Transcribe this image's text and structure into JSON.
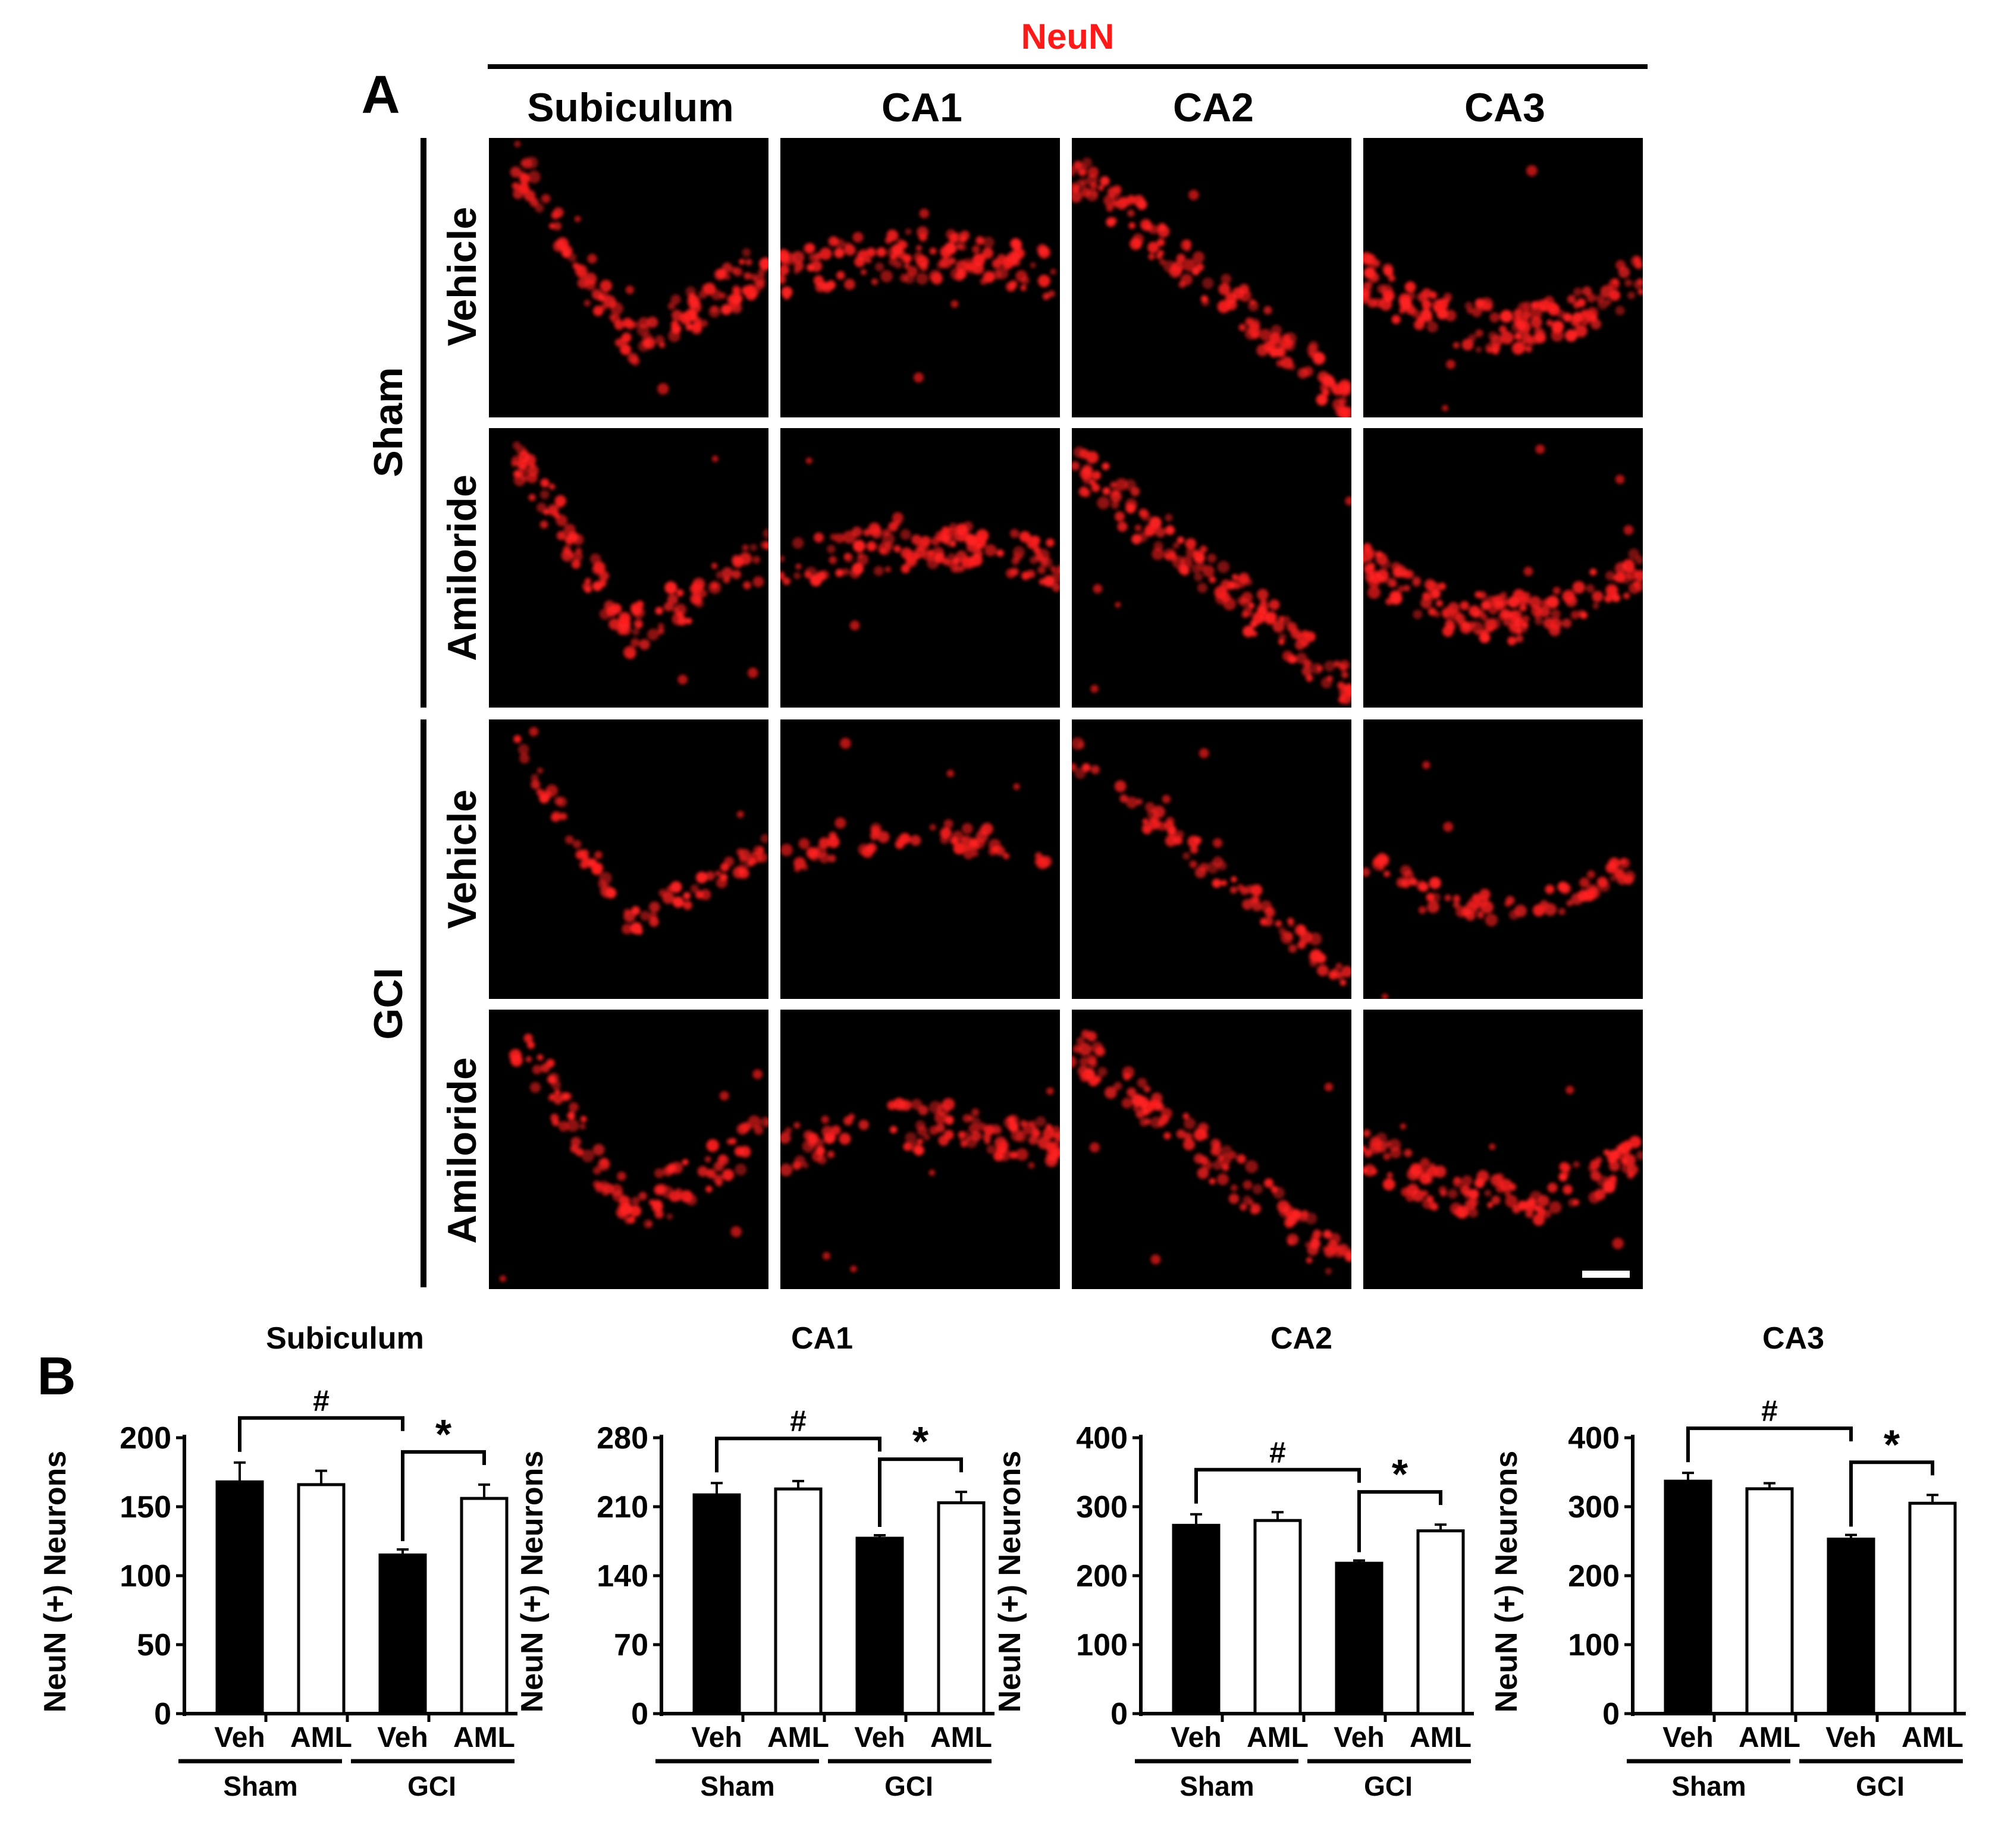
{
  "panel_a": {
    "label": "A",
    "stain": "NeuN",
    "regions": [
      "Subiculum",
      "CA1",
      "CA2",
      "CA3"
    ],
    "groups": [
      {
        "name": "Sham",
        "rows": [
          "Vehicle",
          "Amiloride"
        ]
      },
      {
        "name": "GCI",
        "rows": [
          "Vehicle",
          "Amiloride"
        ]
      }
    ]
  },
  "panel_b": {
    "label": "B"
  },
  "colors": {
    "stain": "#ff1a1a",
    "cell": "#ff2020",
    "background": "#000000",
    "bar_veh": "#000000",
    "bar_aml": "#ffffff"
  },
  "chart_data": [
    {
      "type": "bar",
      "title": "Subiculum",
      "ylabel": "NeuN (+) Neurons",
      "ylim": [
        0,
        200
      ],
      "yticks": [
        0,
        50,
        100,
        150,
        200
      ],
      "categories": [
        "Veh",
        "AML",
        "Veh",
        "AML"
      ],
      "groups": [
        "Sham",
        "GCI"
      ],
      "values": [
        168,
        166,
        115,
        156
      ],
      "errors": [
        14,
        10,
        4,
        10
      ],
      "annotations": [
        "#",
        "*"
      ]
    },
    {
      "type": "bar",
      "title": "CA1",
      "ylabel": "NeuN (+) Neurons",
      "ylim": [
        0,
        280
      ],
      "yticks": [
        0,
        70,
        140,
        210,
        280
      ],
      "categories": [
        "Veh",
        "AML",
        "Veh",
        "AML"
      ],
      "groups": [
        "Sham",
        "GCI"
      ],
      "values": [
        222,
        228,
        178,
        214
      ],
      "errors": [
        12,
        8,
        3,
        11
      ],
      "annotations": [
        "#",
        "*"
      ]
    },
    {
      "type": "bar",
      "title": "CA2",
      "ylabel": "NeuN (+) Neurons",
      "ylim": [
        0,
        400
      ],
      "yticks": [
        0,
        100,
        200,
        300,
        400
      ],
      "categories": [
        "Veh",
        "AML",
        "Veh",
        "AML"
      ],
      "groups": [
        "Sham",
        "GCI"
      ],
      "values": [
        273,
        280,
        218,
        265
      ],
      "errors": [
        16,
        12,
        4,
        9
      ],
      "annotations": [
        "#",
        "*"
      ]
    },
    {
      "type": "bar",
      "title": "CA3",
      "ylabel": "NeuN (+) Neurons",
      "ylim": [
        0,
        400
      ],
      "yticks": [
        0,
        100,
        200,
        300,
        400
      ],
      "categories": [
        "Veh",
        "AML",
        "Veh",
        "AML"
      ],
      "groups": [
        "Sham",
        "GCI"
      ],
      "values": [
        337,
        326,
        253,
        305
      ],
      "errors": [
        12,
        8,
        6,
        12
      ],
      "annotations": [
        "#",
        "*"
      ]
    }
  ]
}
